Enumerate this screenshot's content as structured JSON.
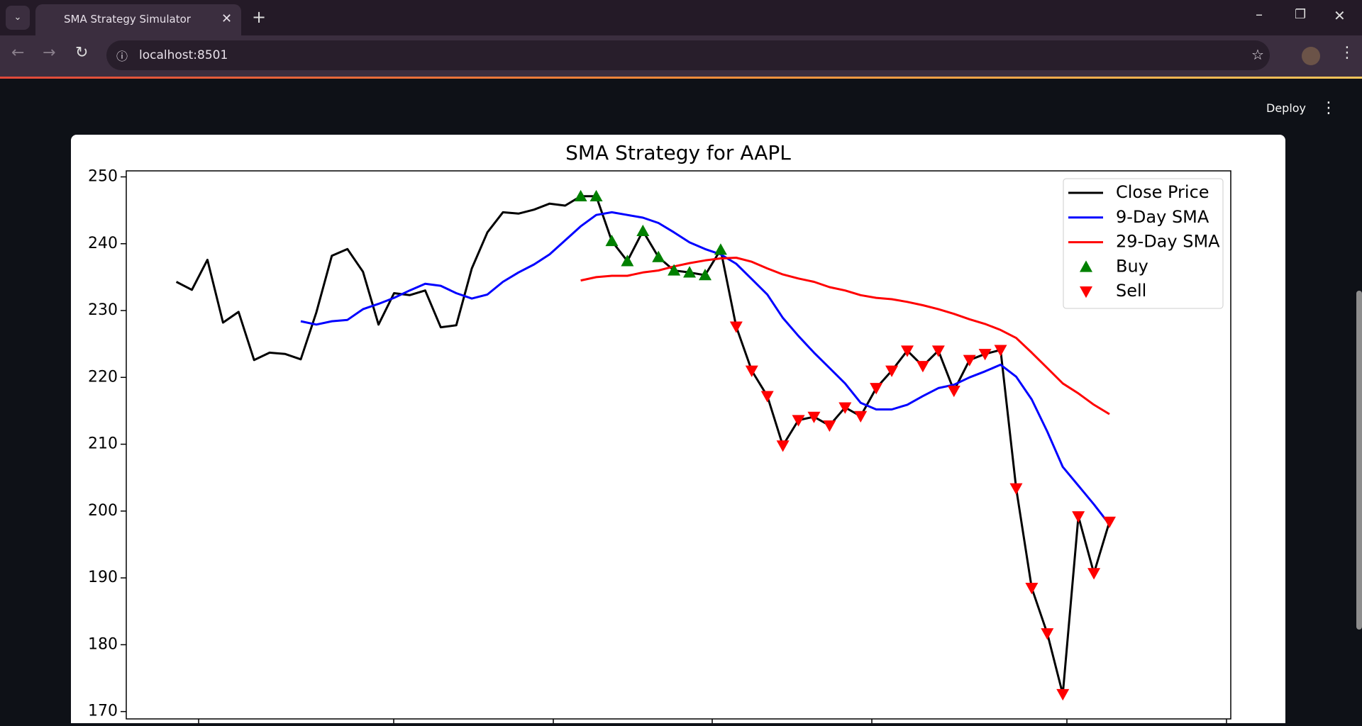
{
  "browser": {
    "tab_title": "SMA Strategy Simulator",
    "url": "localhost:8501"
  },
  "app": {
    "deploy": "Deploy"
  },
  "chart_data": {
    "type": "line",
    "title": "SMA Strategy for AAPL",
    "categories": [
      null,
      null,
      null,
      null,
      null,
      null,
      null,
      null,
      null,
      null,
      null,
      null,
      null,
      null,
      null,
      null,
      null,
      null,
      null,
      null,
      null,
      null,
      null,
      null,
      null,
      null,
      null,
      null,
      null,
      null,
      null,
      null,
      null,
      null,
      null,
      null,
      null,
      null,
      null,
      null,
      null,
      null,
      null,
      null,
      null,
      null,
      null,
      null,
      null,
      null,
      null,
      null,
      null,
      null,
      null,
      null,
      null,
      null,
      null,
      null,
      null
    ],
    "series": [
      {
        "name": "Close Price",
        "color": "#000000",
        "values": [
          234.3,
          233.1,
          237.6,
          228.2,
          229.8,
          222.6,
          223.7,
          223.5,
          222.7,
          229.7,
          238.2,
          239.2,
          235.8,
          227.9,
          232.6,
          232.3,
          233.0,
          227.5,
          227.8,
          236.3,
          241.7,
          244.7,
          244.5,
          245.1,
          246.0,
          245.7,
          247.1,
          247.1,
          240.4,
          237.4,
          241.9,
          238.0,
          236.0,
          235.7,
          235.3,
          239.1,
          227.6,
          221.0,
          217.2,
          209.8,
          213.6,
          214.1,
          212.8,
          215.5,
          214.2,
          218.4,
          221.0,
          224.0,
          221.7,
          224.0,
          218.0,
          222.6,
          223.5,
          224.1,
          203.4,
          188.5,
          181.7,
          172.6,
          199.2,
          190.7,
          198.4
        ]
      },
      {
        "name": "9-Day SMA",
        "color": "#0000ff",
        "values": [
          null,
          null,
          null,
          null,
          null,
          null,
          null,
          null,
          228.4,
          227.9,
          228.4,
          228.6,
          230.2,
          231.0,
          231.9,
          233.0,
          234.0,
          233.7,
          232.6,
          231.8,
          232.4,
          234.3,
          235.7,
          236.9,
          238.4,
          240.5,
          242.6,
          244.3,
          244.7,
          244.3,
          243.9,
          243.1,
          241.7,
          240.2,
          239.2,
          238.4,
          237.0,
          234.7,
          232.4,
          228.9,
          226.2,
          223.7,
          221.4,
          219.1,
          216.2,
          215.2,
          215.2,
          215.9,
          217.2,
          218.4,
          218.9,
          220.0,
          220.9,
          221.9,
          220.1,
          216.7,
          211.9,
          206.6,
          203.8,
          201.0,
          198.0
        ]
      },
      {
        "name": "29-Day SMA",
        "color": "#ff0000",
        "values": [
          null,
          null,
          null,
          null,
          null,
          null,
          null,
          null,
          null,
          null,
          null,
          null,
          null,
          null,
          null,
          null,
          null,
          null,
          null,
          null,
          null,
          null,
          null,
          null,
          null,
          null,
          234.5,
          235.0,
          235.2,
          235.2,
          235.7,
          236.0,
          236.6,
          237.1,
          237.5,
          237.8,
          237.9,
          237.3,
          236.3,
          235.4,
          234.8,
          234.3,
          233.5,
          233.0,
          232.3,
          231.9,
          231.7,
          231.3,
          230.8,
          230.2,
          229.5,
          228.7,
          228.0,
          227.1,
          225.9,
          223.7,
          221.4,
          219.1,
          217.6,
          215.9,
          214.5
        ]
      },
      {
        "name": "Buy",
        "color": "#008000",
        "marker": "^",
        "values": [
          null,
          null,
          null,
          null,
          null,
          null,
          null,
          null,
          null,
          null,
          null,
          null,
          null,
          null,
          null,
          null,
          null,
          null,
          null,
          null,
          null,
          null,
          null,
          null,
          null,
          null,
          247.1,
          247.1,
          240.4,
          237.4,
          241.9,
          238.0,
          236.0,
          235.7,
          235.3,
          239.1,
          null,
          null,
          null,
          null,
          null,
          null,
          null,
          null,
          null,
          null,
          null,
          null,
          null,
          null,
          null,
          null,
          null,
          null,
          null,
          null,
          null,
          null,
          null,
          null,
          null
        ]
      },
      {
        "name": "Sell",
        "color": "#ff0000",
        "marker": "v",
        "values": [
          null,
          null,
          null,
          null,
          null,
          null,
          null,
          null,
          null,
          null,
          null,
          null,
          null,
          null,
          null,
          null,
          null,
          null,
          null,
          null,
          null,
          null,
          null,
          null,
          null,
          null,
          null,
          null,
          null,
          null,
          null,
          null,
          null,
          null,
          null,
          null,
          227.6,
          221.0,
          217.2,
          209.8,
          213.6,
          214.1,
          212.8,
          215.5,
          214.2,
          218.4,
          221.0,
          224.0,
          221.7,
          224.0,
          218.0,
          222.6,
          223.5,
          224.1,
          203.4,
          188.5,
          181.7,
          172.6,
          199.2,
          190.7,
          198.4
        ]
      }
    ],
    "ylim": [
      168.9,
      250.9
    ],
    "yticks": [
      170,
      180,
      190,
      200,
      210,
      220,
      230,
      240,
      250
    ],
    "legend": "upper right"
  }
}
